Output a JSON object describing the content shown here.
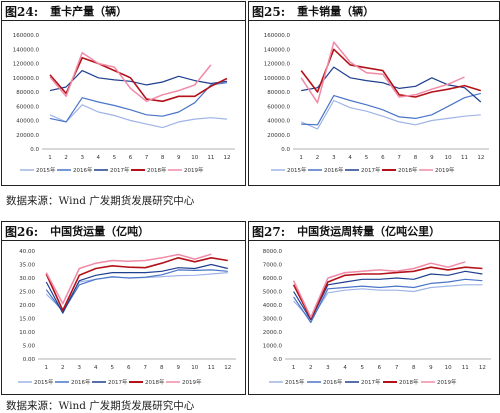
{
  "source_line_1": "数据来源：Wind    广发期货发展研究中心",
  "source_line_2": "数据来源：Wind    广发期货发展研究中心",
  "legend_years": [
    "2015年",
    "2016年",
    "2017年",
    "2018年",
    "2019年"
  ],
  "colors": {
    "2015": "#9fb4e6",
    "2016": "#4a74c8",
    "2017": "#1f3f8f",
    "2018": "#b3121a",
    "2019": "#f08aa6"
  },
  "chart_data": [
    {
      "id": "fig24",
      "fig_label": "图24:",
      "title": "重卡产量（辆）",
      "type": "line",
      "x": [
        1,
        2,
        3,
        4,
        5,
        6,
        7,
        8,
        9,
        10,
        11,
        12
      ],
      "ylim": [
        0,
        160000
      ],
      "yticks": [
        "0.0",
        "20000.0",
        "40000.0",
        "60000.0",
        "80000.0",
        "100000.0",
        "120000.0",
        "140000.0",
        "160000.0"
      ],
      "series": [
        {
          "name": "2015年",
          "values": [
            48000,
            38000,
            62000,
            52000,
            47000,
            40000,
            35000,
            30000,
            38000,
            42000,
            44000,
            42000
          ]
        },
        {
          "name": "2016年",
          "values": [
            43000,
            38000,
            72000,
            66000,
            61000,
            55000,
            48000,
            46000,
            52000,
            65000,
            90000,
            93000
          ]
        },
        {
          "name": "2017年",
          "values": [
            82000,
            87000,
            110000,
            100000,
            97000,
            95000,
            90000,
            94000,
            102000,
            96000,
            92000,
            95000
          ]
        },
        {
          "name": "2018年",
          "values": [
            104000,
            78000,
            128000,
            120000,
            110000,
            100000,
            70000,
            67000,
            74000,
            74000,
            88000,
            99000
          ]
        },
        {
          "name": "2019年",
          "values": [
            101000,
            74000,
            135000,
            120000,
            115000,
            85000,
            67000,
            76000,
            82000,
            90000,
            118000,
            null
          ]
        }
      ]
    },
    {
      "id": "fig25",
      "fig_label": "图25:",
      "title": "重卡销量（辆）",
      "type": "line",
      "x": [
        1,
        2,
        3,
        4,
        5,
        6,
        7,
        8,
        9,
        10,
        11,
        12
      ],
      "ylim": [
        0,
        160000
      ],
      "yticks": [
        "0.0",
        "20000.0",
        "40000.0",
        "60000.0",
        "80000.0",
        "100000.0",
        "120000.0",
        "140000.0",
        "160000.0"
      ],
      "series": [
        {
          "name": "2015年",
          "values": [
            38000,
            28000,
            68000,
            58000,
            53000,
            46000,
            38000,
            34000,
            40000,
            43000,
            46000,
            48000
          ]
        },
        {
          "name": "2016年",
          "values": [
            35000,
            34000,
            75000,
            68000,
            62000,
            55000,
            45000,
            43000,
            48000,
            60000,
            72000,
            78000
          ]
        },
        {
          "name": "2017年",
          "values": [
            82000,
            86000,
            115000,
            100000,
            96000,
            93000,
            85000,
            88000,
            100000,
            90000,
            86000,
            66000
          ]
        },
        {
          "name": "2018年",
          "values": [
            110000,
            80000,
            140000,
            118000,
            114000,
            110000,
            76000,
            73000,
            80000,
            84000,
            89000,
            82000
          ]
        },
        {
          "name": "2019年",
          "values": [
            100000,
            65000,
            150000,
            122000,
            107000,
            105000,
            73000,
            76000,
            84000,
            91000,
            101000,
            null
          ]
        }
      ]
    },
    {
      "id": "fig26",
      "fig_label": "图26:",
      "title": "中国货运量（亿吨）",
      "type": "line",
      "x": [
        1,
        2,
        3,
        4,
        5,
        6,
        7,
        8,
        9,
        10,
        11,
        12
      ],
      "ylim": [
        0,
        40
      ],
      "yticks": [
        "0.00",
        "5.00",
        "10.00",
        "15.00",
        "20.00",
        "25.00",
        "30.00",
        "35.00",
        "40.00"
      ],
      "series": [
        {
          "name": "2015年",
          "values": [
            24.0,
            18.0,
            28.5,
            29.5,
            30.3,
            30.0,
            30.2,
            30.5,
            30.9,
            31.0,
            31.5,
            32.0
          ]
        },
        {
          "name": "2016年",
          "values": [
            25.7,
            17.4,
            27.5,
            29.5,
            30.5,
            30.0,
            30.3,
            31.2,
            33.0,
            32.8,
            33.0,
            32.5
          ]
        },
        {
          "name": "2017年",
          "values": [
            28.5,
            17.0,
            29.0,
            31.0,
            32.0,
            32.0,
            32.0,
            32.5,
            33.8,
            33.5,
            35.0,
            33.5
          ]
        },
        {
          "name": "2018年",
          "values": [
            31.5,
            18.0,
            31.0,
            33.5,
            34.5,
            34.0,
            33.8,
            35.5,
            37.5,
            36.0,
            37.5,
            36.5
          ]
        },
        {
          "name": "2019年",
          "values": [
            32.0,
            20.5,
            33.5,
            35.5,
            36.5,
            36.2,
            36.5,
            37.5,
            38.7,
            37.0,
            38.8,
            null
          ]
        }
      ]
    },
    {
      "id": "fig27",
      "fig_label": "图27:",
      "title": "中国货运周转量（亿吨公里）",
      "type": "line",
      "x": [
        1,
        2,
        3,
        4,
        5,
        6,
        7,
        8,
        9,
        10,
        11,
        12
      ],
      "ylim": [
        0,
        8000
      ],
      "yticks": [
        "0.0",
        "1000.0",
        "2000.0",
        "3000.0",
        "4000.0",
        "5000.0",
        "6000.0",
        "7000.0",
        "8000.0"
      ],
      "series": [
        {
          "name": "2015年",
          "values": [
            4300,
            2900,
            4900,
            5100,
            5200,
            5100,
            5100,
            5000,
            5300,
            5400,
            5500,
            5500
          ]
        },
        {
          "name": "2016年",
          "values": [
            4600,
            2700,
            5200,
            5300,
            5400,
            5300,
            5400,
            5300,
            5600,
            5700,
            5900,
            5800
          ]
        },
        {
          "name": "2017年",
          "values": [
            5000,
            2900,
            5500,
            5700,
            5900,
            5900,
            6000,
            5900,
            6300,
            6200,
            6500,
            6300
          ]
        },
        {
          "name": "2018年",
          "values": [
            5500,
            3000,
            5700,
            6200,
            6300,
            6300,
            6400,
            6500,
            6800,
            6600,
            6800,
            6700
          ]
        },
        {
          "name": "2019年",
          "values": [
            5800,
            3100,
            6000,
            6400,
            6500,
            6600,
            6500,
            6700,
            7100,
            6800,
            7200,
            null
          ]
        }
      ]
    }
  ]
}
